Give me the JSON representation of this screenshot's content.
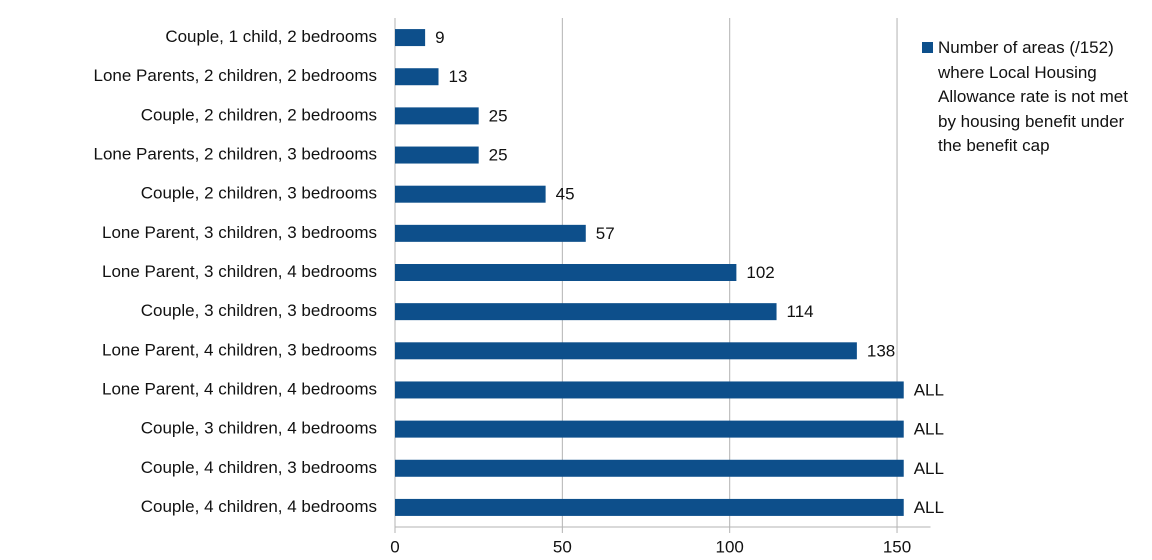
{
  "chart_data": {
    "type": "bar",
    "orientation": "horizontal",
    "categories": [
      "Couple, 1 child, 2 bedrooms",
      "Lone Parents, 2 children, 2 bedrooms",
      "Couple, 2 children, 2 bedrooms",
      "Lone Parents, 2 children, 3 bedrooms",
      "Couple, 2 children, 3 bedrooms",
      "Lone Parent, 3 children, 3 bedrooms",
      "Lone Parent, 3 children, 4 bedrooms",
      "Couple, 3 children, 3 bedrooms",
      "Lone Parent, 4 children, 3 bedrooms",
      "Lone Parent, 4 children, 4 bedrooms",
      "Couple, 3 children, 4 bedrooms",
      "Couple, 4 children, 3 bedrooms",
      "Couple, 4 children, 4 bedrooms"
    ],
    "series": [
      {
        "name": "Number of areas (/152) where Local Housing Allowance rate is not met by housing benefit under the benefit cap",
        "color": "#0d4f8b",
        "values": [
          9,
          13,
          25,
          25,
          45,
          57,
          102,
          114,
          138,
          152,
          152,
          152,
          152
        ],
        "value_labels": [
          "9",
          "13",
          "25",
          "25",
          "45",
          "57",
          "102",
          "114",
          "138",
          "ALL",
          "ALL",
          "ALL",
          "ALL"
        ]
      }
    ],
    "xlim": [
      0,
      160
    ],
    "xticks": [
      0,
      50,
      100,
      150
    ],
    "grid": true,
    "legend": "right"
  }
}
